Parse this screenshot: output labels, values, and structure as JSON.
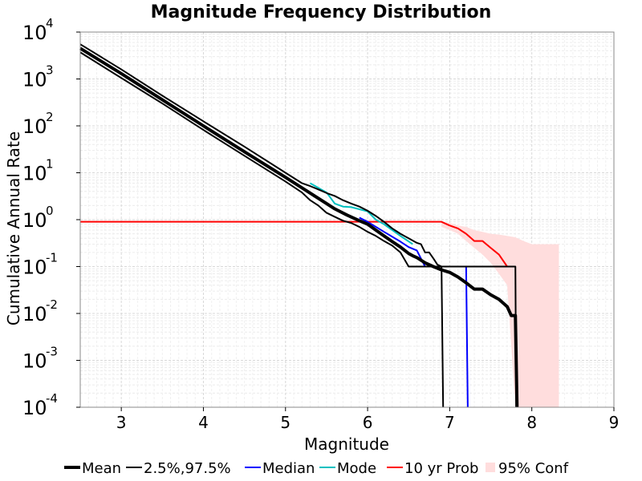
{
  "chart_data": {
    "type": "line",
    "title": "Magnitude Frequency Distribution",
    "xlabel": "Magnitude",
    "ylabel": "Cumulative Annual Rate",
    "x_ticks": [
      "3",
      "4",
      "5",
      "6",
      "7",
      "8",
      "9"
    ],
    "y_ticks": [
      {
        "base": "10",
        "exp": "-4"
      },
      {
        "base": "10",
        "exp": "-3"
      },
      {
        "base": "10",
        "exp": "-2"
      },
      {
        "base": "10",
        "exp": "-1"
      },
      {
        "base": "10",
        "exp": "0"
      },
      {
        "base": "10",
        "exp": "1"
      },
      {
        "base": "10",
        "exp": "2"
      },
      {
        "base": "10",
        "exp": "3"
      },
      {
        "base": "10",
        "exp": "4"
      }
    ],
    "xlim": [
      2.5,
      9
    ],
    "ylim": [
      0.0001,
      10000
    ],
    "yscale": "log",
    "grid": true,
    "legend_position": "bottom",
    "series": [
      {
        "name": "Mean",
        "color": "#000000",
        "style": "thick",
        "x": [
          2.5,
          3.0,
          3.5,
          4.0,
          4.5,
          5.0,
          5.25,
          5.5,
          5.6,
          5.75,
          5.9,
          6.0,
          6.1,
          6.2,
          6.3,
          6.4,
          6.5,
          6.55,
          6.6,
          6.7,
          6.8,
          6.9,
          7.0,
          7.1,
          7.2,
          7.3,
          7.4,
          7.5,
          7.6,
          7.7,
          7.75,
          7.8,
          7.82
        ],
        "y": [
          4500,
          1300,
          360,
          100,
          28,
          8,
          4.2,
          2.2,
          1.7,
          1.25,
          0.95,
          0.8,
          0.6,
          0.45,
          0.34,
          0.26,
          0.19,
          0.17,
          0.155,
          0.12,
          0.1,
          0.085,
          0.075,
          0.06,
          0.045,
          0.033,
          0.033,
          0.025,
          0.02,
          0.014,
          0.009,
          0.009,
          0.0001
        ]
      },
      {
        "name": "2.5%,97.5%",
        "color": "#000000",
        "style": "thin",
        "x": [
          2.5,
          3.0,
          3.5,
          4.0,
          4.5,
          5.0,
          5.2,
          5.3,
          5.4,
          5.5,
          5.6,
          5.7,
          5.8,
          5.9,
          6.0,
          6.1,
          6.2,
          6.3,
          6.4,
          6.5,
          6.6,
          6.65,
          6.7,
          6.75,
          6.8,
          6.85,
          6.9,
          7.0,
          7.1,
          7.2,
          7.3,
          7.4,
          7.5,
          7.6,
          7.7,
          7.8,
          7.81
        ],
        "y": [
          5500,
          1600,
          440,
          125,
          36,
          10,
          6.0,
          5.2,
          4.4,
          3.7,
          3.2,
          2.6,
          2.2,
          1.9,
          1.55,
          1.2,
          0.9,
          0.65,
          0.5,
          0.4,
          0.32,
          0.3,
          0.2,
          0.2,
          0.15,
          0.11,
          0.1,
          0.1,
          0.1,
          0.1,
          0.1,
          0.1,
          0.1,
          0.1,
          0.1,
          0.1,
          0.0001
        ],
        "x2": [
          2.5,
          3.0,
          3.5,
          4.0,
          4.5,
          5.0,
          5.2,
          5.3,
          5.4,
          5.5,
          5.6,
          5.7,
          5.8,
          5.9,
          6.0,
          6.1,
          6.2,
          6.3,
          6.4,
          6.5,
          6.6,
          6.7,
          6.8,
          6.9,
          6.92
        ],
        "y2": [
          3700,
          1050,
          300,
          82,
          23,
          6.5,
          3.8,
          2.6,
          2.0,
          1.4,
          1.15,
          0.95,
          0.85,
          0.7,
          0.55,
          0.45,
          0.35,
          0.28,
          0.2,
          0.1,
          0.1,
          0.1,
          0.1,
          0.1,
          0.0001
        ]
      },
      {
        "name": "Median",
        "color": "#0000ff",
        "style": "normal",
        "x": [
          5.9,
          6.0,
          6.2,
          6.4,
          6.5,
          6.6,
          6.7,
          6.8,
          7.0,
          7.1,
          7.2,
          7.22
        ],
        "y": [
          1.1,
          0.9,
          0.55,
          0.34,
          0.26,
          0.22,
          0.1,
          0.1,
          0.1,
          0.1,
          0.1,
          0.0001
        ]
      },
      {
        "name": "Mode",
        "color": "#00c0c0",
        "style": "normal",
        "x": [
          5.3,
          5.5,
          5.6,
          5.7,
          5.8,
          6.0,
          6.1,
          6.2,
          6.4,
          6.55
        ],
        "y": [
          6.0,
          3.8,
          2.2,
          1.9,
          1.85,
          1.5,
          1.0,
          0.8,
          0.45,
          0.3
        ]
      },
      {
        "name": "10 yr Prob",
        "color": "#ff0000",
        "style": "normal",
        "x": [
          2.5,
          6.0,
          6.9,
          7.0,
          7.1,
          7.2,
          7.3,
          7.4,
          7.5,
          7.6,
          7.7
        ],
        "y": [
          0.9,
          0.9,
          0.9,
          0.75,
          0.65,
          0.5,
          0.35,
          0.35,
          0.25,
          0.18,
          0.1
        ]
      }
    ],
    "confidence_band": {
      "name": "95% Conf",
      "color": "#ffdddd",
      "x": [
        6.9,
        7.0,
        7.1,
        7.2,
        7.3,
        7.4,
        7.5,
        7.6,
        7.7,
        7.8,
        7.9,
        8.0,
        8.1,
        8.2,
        8.33
      ],
      "upper": [
        0.9,
        0.85,
        0.75,
        0.7,
        0.6,
        0.55,
        0.5,
        0.48,
        0.45,
        0.42,
        0.35,
        0.3,
        0.3,
        0.3,
        0.3
      ],
      "lower": [
        0.7,
        0.6,
        0.5,
        0.35,
        0.25,
        0.18,
        0.12,
        0.07,
        0.04,
        0.0001,
        0.0001,
        0.0001,
        0.0001,
        0.0001,
        0.0001
      ]
    },
    "legend": [
      {
        "label": "Mean",
        "color": "#000000",
        "kind": "thick-line"
      },
      {
        "label": "2.5%,97.5%",
        "color": "#000000",
        "kind": "line"
      },
      {
        "label": "Median",
        "color": "#0000ff",
        "kind": "line"
      },
      {
        "label": "Mode",
        "color": "#00c0c0",
        "kind": "line"
      },
      {
        "label": "10 yr Prob",
        "color": "#ff0000",
        "kind": "line"
      },
      {
        "label": "95% Conf",
        "color": "#ffdddd",
        "kind": "patch"
      }
    ]
  }
}
